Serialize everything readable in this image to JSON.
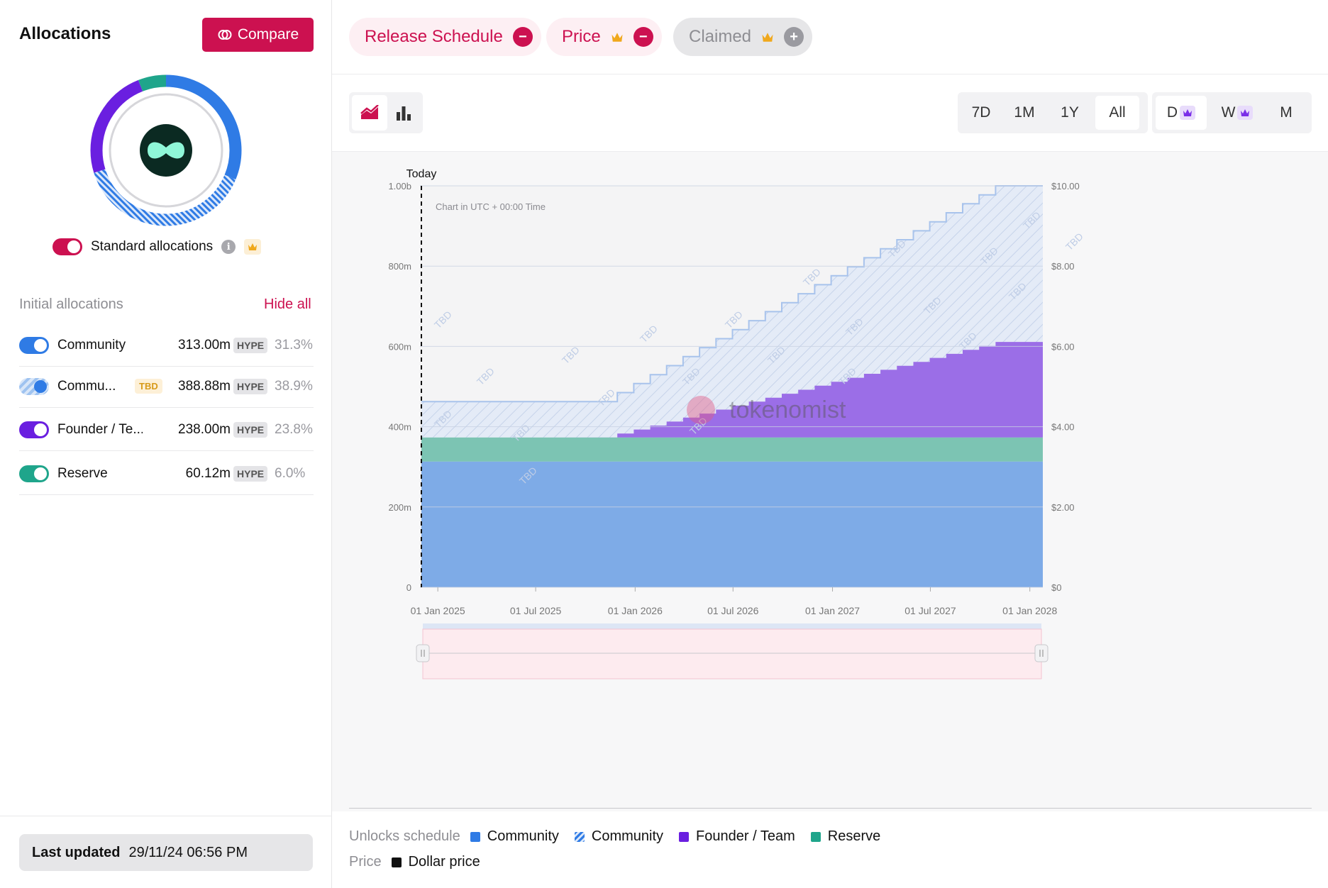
{
  "allocations": {
    "title": "Allocations",
    "compare_label": "Compare",
    "standard_label": "Standard allocations",
    "initial_label": "Initial allocations",
    "hide_all_label": "Hide all",
    "rows": [
      {
        "name": "Community",
        "amount": "313.00m",
        "token": "HYPE",
        "pct": "31.3%",
        "color": "#2f7be5",
        "tbd": ""
      },
      {
        "name": "Commu...",
        "amount": "388.88m",
        "token": "HYPE",
        "pct": "38.9%",
        "color": "#2f7be5",
        "tbd": "TBD"
      },
      {
        "name": "Founder / Te...",
        "amount": "238.00m",
        "token": "HYPE",
        "pct": "23.8%",
        "color": "#6a1fe0",
        "tbd": ""
      },
      {
        "name": "Reserve",
        "amount": "60.12m",
        "token": "HYPE",
        "pct": "6.0%",
        "color": "#1fa58b",
        "tbd": ""
      }
    ],
    "last_updated_label": "Last updated",
    "last_updated_value": "29/11/24 06:56 PM"
  },
  "filters": [
    {
      "label": "Release Schedule",
      "active": true
    },
    {
      "label": "Price",
      "active": true
    },
    {
      "label": "Claimed",
      "active": false
    }
  ],
  "ranges": [
    "7D",
    "1M",
    "1Y",
    "All"
  ],
  "selected_range": "All",
  "intervals": [
    "D",
    "W",
    "M"
  ],
  "chart_data": {
    "type": "area",
    "stacked": true,
    "today_label": "Today",
    "note": "Chart in UTC + 00:00 Time",
    "watermark": "tokenomist",
    "tbd_label": "TBD",
    "x_ticks": [
      "01 Jan 2025",
      "01 Jul 2025",
      "01 Jan 2026",
      "01 Jul 2026",
      "01 Jan 2027",
      "01 Jul 2027",
      "01 Jan 2028"
    ],
    "x_range": [
      "2024-11-29",
      "2028-01-25"
    ],
    "y_left_ticks": [
      "0",
      "200m",
      "400m",
      "600m",
      "800m",
      "1.00b"
    ],
    "y_left_range": [
      0,
      1000
    ],
    "y_right_ticks": [
      "$0",
      "$2.00",
      "$4.00",
      "$6.00",
      "$8.00",
      "$10.00"
    ],
    "y_right_range": [
      0,
      10
    ],
    "ylabel_units": "millions of tokens",
    "series": [
      {
        "name": "Community",
        "style": "solid",
        "color": "#2f7be5",
        "unlocked_millions": 313.0
      },
      {
        "name": "Reserve",
        "style": "solid",
        "color": "#1fa58b",
        "unlocked_millions": 60.12
      },
      {
        "name": "Founder / Team",
        "style": "solid",
        "color": "#6a1fe0",
        "start": "2025-11-29",
        "end": "2027-11-29",
        "steps": 24,
        "total_millions": 238.0
      },
      {
        "name": "Community",
        "style": "hatched",
        "color": "#2f7be5",
        "label": "TBD",
        "total_millions": 388.88
      }
    ],
    "total_supply_millions": 1000.0
  },
  "legend": {
    "unlocks_label": "Unlocks schedule",
    "items": [
      {
        "name": "Community",
        "color": "#2f7be5",
        "style": "solid"
      },
      {
        "name": "Community",
        "color": "#2f7be5",
        "style": "hatched"
      },
      {
        "name": "Founder / Team",
        "color": "#6a1fe0",
        "style": "solid"
      },
      {
        "name": "Reserve",
        "color": "#1fa58b",
        "style": "solid"
      }
    ],
    "price_label": "Price",
    "price_items": [
      {
        "name": "Dollar price",
        "color": "#111111"
      }
    ]
  }
}
